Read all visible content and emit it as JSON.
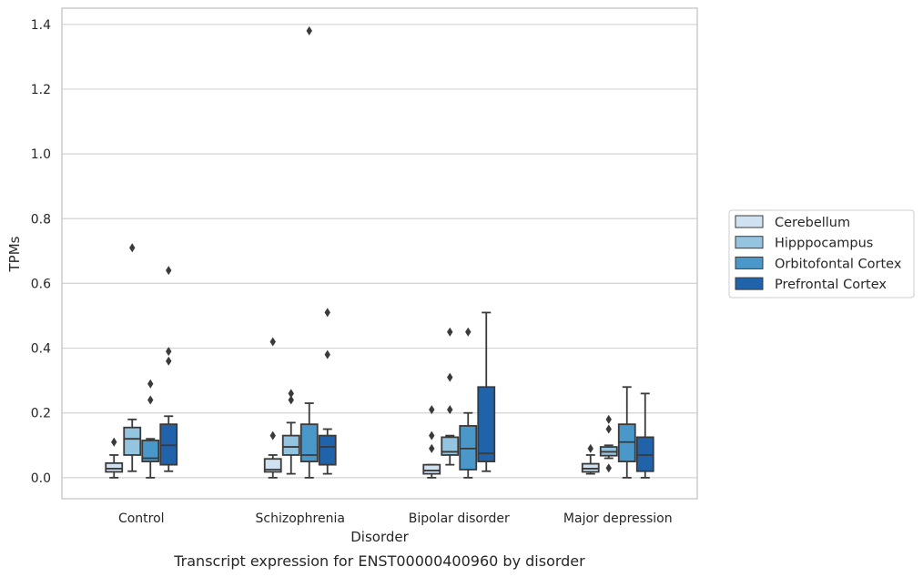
{
  "caption": "Transcript expression for ENST00000400960 by disorder",
  "chart_data": {
    "type": "box",
    "xlabel": "Disorder",
    "ylabel": "TPMs",
    "ylim": [
      -0.065,
      1.45
    ],
    "yticks": [
      "0.0",
      "0.2",
      "0.4",
      "0.6",
      "0.8",
      "1.0",
      "1.2",
      "1.4"
    ],
    "grid": "horizontal",
    "legend_position": "outside-right",
    "categories": [
      "Control",
      "Schizophrenia",
      "Bipolar disorder",
      "Major depression"
    ],
    "series": [
      {
        "name": "Cerebellum",
        "color": "#d0e1f2",
        "boxes": [
          {
            "min": 0.0,
            "q1": 0.018,
            "median": 0.028,
            "q3": 0.045,
            "max": 0.07,
            "outliers": [
              0.11
            ]
          },
          {
            "min": 0.0,
            "q1": 0.018,
            "median": 0.025,
            "q3": 0.058,
            "max": 0.07,
            "outliers": [
              0.13,
              0.42
            ]
          },
          {
            "min": 0.0,
            "q1": 0.012,
            "median": 0.022,
            "q3": 0.04,
            "max": 0.04,
            "outliers": [
              0.09,
              0.13,
              0.21
            ]
          },
          {
            "min": 0.012,
            "q1": 0.018,
            "median": 0.028,
            "q3": 0.043,
            "max": 0.07,
            "outliers": [
              0.09
            ]
          }
        ]
      },
      {
        "name": "Hipppocampus",
        "color": "#94c4df",
        "boxes": [
          {
            "min": 0.02,
            "q1": 0.07,
            "median": 0.12,
            "q3": 0.155,
            "max": 0.18,
            "outliers": [
              0.71
            ]
          },
          {
            "min": 0.012,
            "q1": 0.07,
            "median": 0.095,
            "q3": 0.13,
            "max": 0.17,
            "outliers": [
              0.24,
              0.26
            ]
          },
          {
            "min": 0.04,
            "q1": 0.07,
            "median": 0.08,
            "q3": 0.125,
            "max": 0.13,
            "outliers": [
              0.21,
              0.31,
              0.45
            ]
          },
          {
            "min": 0.06,
            "q1": 0.068,
            "median": 0.08,
            "q3": 0.095,
            "max": 0.1,
            "outliers": [
              0.03,
              0.15,
              0.18
            ]
          }
        ]
      },
      {
        "name": "Orbitofontal Cortex",
        "color": "#4a98c9",
        "boxes": [
          {
            "min": 0.0,
            "q1": 0.05,
            "median": 0.06,
            "q3": 0.115,
            "max": 0.12,
            "outliers": [
              0.24,
              0.29
            ]
          },
          {
            "min": 0.0,
            "q1": 0.05,
            "median": 0.07,
            "q3": 0.165,
            "max": 0.23,
            "outliers": [
              1.38
            ]
          },
          {
            "min": 0.0,
            "q1": 0.025,
            "median": 0.09,
            "q3": 0.16,
            "max": 0.2,
            "outliers": [
              0.45
            ]
          },
          {
            "min": 0.0,
            "q1": 0.05,
            "median": 0.11,
            "q3": 0.165,
            "max": 0.28,
            "outliers": []
          }
        ]
      },
      {
        "name": "Prefrontal Cortex",
        "color": "#2163aa",
        "boxes": [
          {
            "min": 0.02,
            "q1": 0.04,
            "median": 0.1,
            "q3": 0.165,
            "max": 0.19,
            "outliers": [
              0.36,
              0.39,
              0.64
            ]
          },
          {
            "min": 0.012,
            "q1": 0.04,
            "median": 0.095,
            "q3": 0.13,
            "max": 0.15,
            "outliers": [
              0.38,
              0.51
            ]
          },
          {
            "min": 0.02,
            "q1": 0.05,
            "median": 0.075,
            "q3": 0.28,
            "max": 0.51,
            "outliers": []
          },
          {
            "min": 0.0,
            "q1": 0.02,
            "median": 0.07,
            "q3": 0.125,
            "max": 0.26,
            "outliers": []
          }
        ]
      }
    ]
  }
}
